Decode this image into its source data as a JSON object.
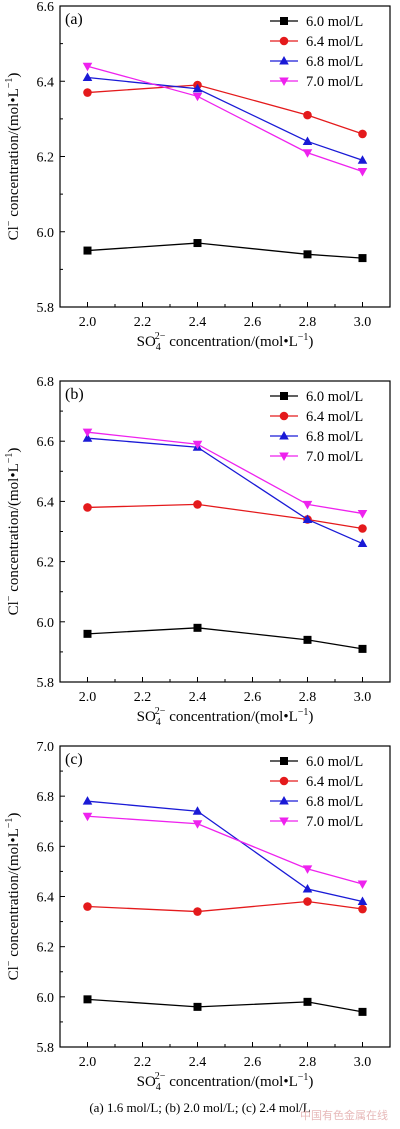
{
  "caption": "(a) 1.6 mol/L; (b) 2.0 mol/L; (c) 2.4 mol/L",
  "watermark": "中国有色金属在线",
  "series_colors": [
    "#000000",
    "#e41a1c",
    "#1a1ad6",
    "#ee22ee"
  ],
  "series_markers": [
    "square",
    "circle",
    "triangle-up",
    "triangle-down"
  ],
  "chart_data": [
    {
      "type": "line",
      "panel_label": "(a)",
      "xlabel_main": "SO",
      "xlabel_sub": "4",
      "xlabel_sup": "2−",
      "xlabel_rest": " concentration/(mol•L",
      "xlabel_unit_sup": "−1",
      "xlabel_end": ")",
      "ylabel_main": "Cl",
      "ylabel_sup": "−",
      "ylabel_rest": " concentration/(mol•L",
      "ylabel_unit_sup": "−1",
      "ylabel_end": ")",
      "xlim": [
        1.9,
        3.1
      ],
      "ylim": [
        5.8,
        6.6
      ],
      "xticks": [
        "2.0",
        "2.2",
        "2.4",
        "2.6",
        "2.8",
        "3.0"
      ],
      "yticks": [
        "5.8",
        "6.0",
        "6.2",
        "6.4",
        "6.6"
      ],
      "x": [
        2.0,
        2.4,
        2.8,
        3.0
      ],
      "series": [
        {
          "name": "6.0 mol/L",
          "values": [
            5.95,
            5.97,
            5.94,
            5.93
          ]
        },
        {
          "name": "6.4 mol/L",
          "values": [
            6.37,
            6.39,
            6.31,
            6.26
          ]
        },
        {
          "name": "6.8 mol/L",
          "values": [
            6.41,
            6.38,
            6.24,
            6.19
          ]
        },
        {
          "name": "7.0 mol/L",
          "values": [
            6.44,
            6.36,
            6.21,
            6.16
          ]
        }
      ],
      "legend": "top-right",
      "grid": false
    },
    {
      "type": "line",
      "panel_label": "(b)",
      "xlabel_main": "SO",
      "xlabel_sub": "4",
      "xlabel_sup": "2−",
      "xlabel_rest": " concentration/(mol•L",
      "xlabel_unit_sup": "−1",
      "xlabel_end": ")",
      "ylabel_main": "Cl",
      "ylabel_sup": "−",
      "ylabel_rest": " concentration/(mol•L",
      "ylabel_unit_sup": "−1",
      "ylabel_end": ")",
      "xlim": [
        1.9,
        3.1
      ],
      "ylim": [
        5.8,
        6.8
      ],
      "xticks": [
        "2.0",
        "2.2",
        "2.4",
        "2.6",
        "2.8",
        "3.0"
      ],
      "yticks": [
        "5.8",
        "6.0",
        "6.2",
        "6.4",
        "6.6",
        "6.8"
      ],
      "x": [
        2.0,
        2.4,
        2.8,
        3.0
      ],
      "series": [
        {
          "name": "6.0 mol/L",
          "values": [
            5.96,
            5.98,
            5.94,
            5.91
          ]
        },
        {
          "name": "6.4 mol/L",
          "values": [
            6.38,
            6.39,
            6.34,
            6.31
          ]
        },
        {
          "name": "6.8 mol/L",
          "values": [
            6.61,
            6.58,
            6.34,
            6.26
          ]
        },
        {
          "name": "7.0 mol/L",
          "values": [
            6.63,
            6.59,
            6.39,
            6.36
          ]
        }
      ],
      "legend": "top-right",
      "grid": false
    },
    {
      "type": "line",
      "panel_label": "(c)",
      "xlabel_main": "SO",
      "xlabel_sub": "4",
      "xlabel_sup": "2−",
      "xlabel_rest": " concentration/(mol•L",
      "xlabel_unit_sup": "−1",
      "xlabel_end": ")",
      "ylabel_main": "Cl",
      "ylabel_sup": "−",
      "ylabel_rest": " concentration/(mol•L",
      "ylabel_unit_sup": "−1",
      "ylabel_end": ")",
      "xlim": [
        1.9,
        3.1
      ],
      "ylim": [
        5.8,
        7.0
      ],
      "xticks": [
        "2.0",
        "2.2",
        "2.4",
        "2.6",
        "2.8",
        "3.0"
      ],
      "yticks": [
        "5.8",
        "6.0",
        "6.2",
        "6.4",
        "6.6",
        "6.8",
        "7.0"
      ],
      "x": [
        2.0,
        2.4,
        2.8,
        3.0
      ],
      "series": [
        {
          "name": "6.0 mol/L",
          "values": [
            5.99,
            5.96,
            5.98,
            5.94
          ]
        },
        {
          "name": "6.4 mol/L",
          "values": [
            6.36,
            6.34,
            6.38,
            6.35
          ]
        },
        {
          "name": "6.8 mol/L",
          "values": [
            6.78,
            6.74,
            6.43,
            6.38
          ]
        },
        {
          "name": "7.0 mol/L",
          "values": [
            6.72,
            6.69,
            6.51,
            6.45
          ]
        }
      ],
      "legend": "top-right",
      "grid": false
    }
  ]
}
